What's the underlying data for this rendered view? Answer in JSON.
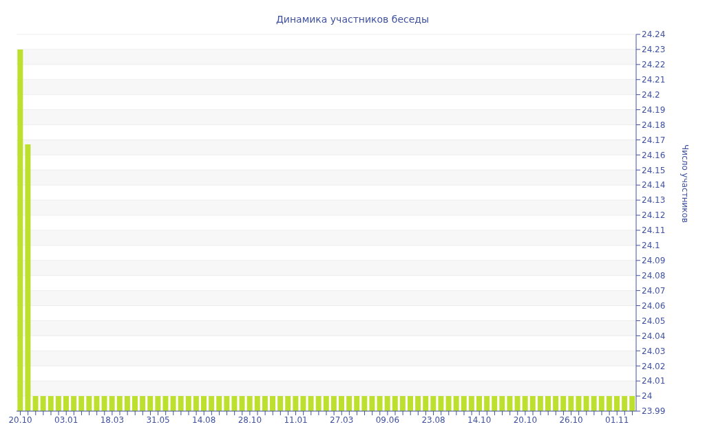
{
  "chart_data": {
    "type": "bar",
    "title": "Динамика участников беседы",
    "ylabel": "Число участников",
    "categories": [
      "20.10",
      null,
      null,
      null,
      null,
      null,
      "03.01",
      null,
      null,
      null,
      null,
      null,
      "18.03",
      null,
      null,
      null,
      null,
      null,
      "31.05",
      null,
      null,
      null,
      null,
      null,
      "14.08",
      null,
      null,
      null,
      null,
      null,
      "28.10",
      null,
      null,
      null,
      null,
      null,
      "11.01",
      null,
      null,
      null,
      null,
      null,
      "27.03",
      null,
      null,
      null,
      null,
      null,
      "09.06",
      null,
      null,
      null,
      null,
      null,
      "23.08",
      null,
      null,
      null,
      null,
      null,
      "14.10",
      null,
      null,
      null,
      null,
      null,
      "20.10",
      null,
      null,
      null,
      null,
      null,
      "26.10",
      null,
      null,
      null,
      null,
      null,
      "01.11",
      null,
      null
    ],
    "values": [
      24.23,
      24.167,
      24,
      24,
      24,
      24,
      24,
      24,
      24,
      24,
      24,
      24,
      24,
      24,
      24,
      24,
      24,
      24,
      24,
      24,
      24,
      24,
      24,
      24,
      24,
      24,
      24,
      24,
      24,
      24,
      24,
      24,
      24,
      24,
      24,
      24,
      24,
      24,
      24,
      24,
      24,
      24,
      24,
      24,
      24,
      24,
      24,
      24,
      24,
      24,
      24,
      24,
      24,
      24,
      24,
      24,
      24,
      24,
      24,
      24,
      24,
      24,
      24,
      24,
      24,
      24,
      24,
      24,
      24,
      24,
      24,
      24,
      24,
      24,
      24,
      24,
      24,
      24,
      24,
      24,
      24
    ],
    "color": "#bde02f",
    "ylim": [
      23.99,
      24.24
    ],
    "yticks": [
      23.99,
      24,
      24.01,
      24.02,
      24.03,
      24.04,
      24.05,
      24.06,
      24.07,
      24.08,
      24.09,
      24.1,
      24.11,
      24.12,
      24.13,
      24.14,
      24.15,
      24.16,
      24.17,
      24.18,
      24.19,
      24.2,
      24.21,
      24.22,
      24.23,
      24.24
    ],
    "grid": "y",
    "legend": false
  }
}
